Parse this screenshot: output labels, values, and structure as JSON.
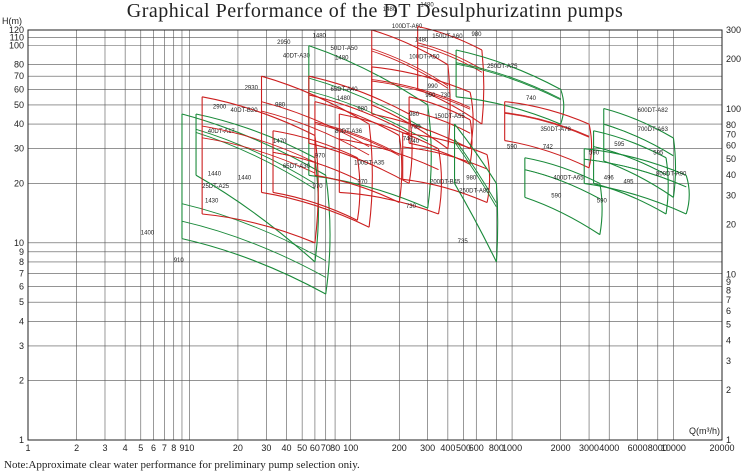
{
  "title": "Graphical Performance of the DT Desulphurizatinn pumps",
  "note": "Note:Approximate clear water performance for preliminary pump  selection oniy.",
  "chart_data": {
    "type": "pump-performance-envelope",
    "xlabel": "Q(m³/h)",
    "ylabel": "H(m)",
    "xscale": "log",
    "yscale": "log",
    "xlim": [
      1,
      20000
    ],
    "ylim": [
      1,
      120
    ],
    "grid": true,
    "x_ticks": [
      1,
      2,
      3,
      4,
      5,
      6,
      7,
      8,
      9,
      10,
      20,
      30,
      40,
      50,
      60,
      70,
      80,
      100,
      200,
      300,
      400,
      500,
      600,
      800,
      1000,
      2000,
      3000,
      4000,
      6000,
      8000,
      10000,
      20000
    ],
    "x_tick_labels": [
      "1",
      "2",
      "3",
      "4",
      "5",
      "6",
      "7",
      "8",
      "9",
      "10",
      "20",
      "30",
      "40",
      "50",
      "60",
      "70",
      "80",
      "100",
      "200",
      "300",
      "400",
      "500",
      "600",
      "800",
      "1000",
      "2000",
      "3000",
      "4000",
      "6000",
      "8000",
      "10000",
      "20000"
    ],
    "y_ticks": [
      1,
      2,
      3,
      4,
      5,
      6,
      7,
      8,
      9,
      10,
      20,
      30,
      40,
      50,
      60,
      70,
      80,
      100,
      110,
      120
    ],
    "y_tick_labels": [
      "1",
      "2",
      "3",
      "4",
      "5",
      "6",
      "7",
      "8",
      "9",
      "10",
      "20",
      "30",
      "40",
      "50",
      "60",
      "70",
      "80",
      "100",
      "110",
      "120"
    ],
    "y2_ticks": [
      1,
      2,
      3,
      4,
      5,
      6,
      7,
      8,
      9,
      10,
      20,
      30,
      40,
      50,
      60,
      70,
      80,
      100,
      200,
      300
    ],
    "y2_tick_labels": [
      "1",
      "2",
      "3",
      "4",
      "5",
      "6",
      "7",
      "8",
      "9",
      "10",
      "20",
      "30",
      "40",
      "50",
      "60",
      "70",
      "80",
      "100",
      "200",
      "300"
    ],
    "colors": {
      "green": "#1a8a3a",
      "red": "#cc1f1f",
      "grid": "#555555"
    },
    "pumps": [
      {
        "name": "25DT-A25",
        "color": "green",
        "x": [
          9,
          70
        ],
        "h_top": [
          45,
          22
        ],
        "h_bot": [
          10.5,
          5.5
        ],
        "tl": [
          0.72,
          0.86
        ],
        "label": [
          12,
          19
        ],
        "speeds": [
          {
            "t": "2900",
            "at": [
              14,
              48
            ]
          },
          {
            "t": "1440",
            "at": [
              13,
              22
            ]
          },
          {
            "t": "1430",
            "at": [
              12.5,
              16
            ]
          },
          {
            "t": "1400",
            "at": [
              5,
              11
            ]
          },
          {
            "t": "910",
            "at": [
              8,
              8
            ]
          }
        ]
      },
      {
        "name": "40DT-A17",
        "color": "green",
        "x": [
          11,
          60
        ],
        "h_top": [
          45,
          27
        ],
        "h_bot": [
          22,
          8
        ],
        "tl": [
          0.25,
          0.3
        ],
        "label": [
          13,
          36
        ],
        "speeds": []
      },
      {
        "name": "40DT-B20",
        "color": "red",
        "x": [
          12,
          60
        ],
        "h_top": [
          55,
          35
        ],
        "h_bot": [
          14,
          10
        ],
        "tl": [
          0.25,
          0.35
        ],
        "label": [
          18,
          46
        ],
        "speeds": [
          {
            "t": "2930",
            "at": [
              22,
              60
            ]
          },
          {
            "t": "1440",
            "at": [
              20,
              21
            ]
          }
        ]
      },
      {
        "name": "40DT-A30",
        "color": "red",
        "x": [
          28,
          130
        ],
        "h_top": [
          70,
          40
        ],
        "h_bot": [
          18,
          12
        ],
        "tl": [
          0.22,
          0.3
        ],
        "label": [
          38,
          87
        ],
        "speeds": [
          {
            "t": "2950",
            "at": [
              35,
              102
            ]
          },
          {
            "t": "980",
            "at": [
              34,
              49
            ]
          },
          {
            "t": "1470",
            "at": [
              33,
              32
            ]
          }
        ]
      },
      {
        "name": "50DT-A50",
        "color": "green",
        "x": [
          55,
          300
        ],
        "h_top": [
          100,
          50
        ],
        "h_bot": [
          22,
          15
        ],
        "tl": [
          0.25,
          0.35
        ],
        "label": [
          75,
          95
        ],
        "speeds": [
          {
            "t": "1480",
            "at": [
              58,
              110
            ]
          }
        ]
      },
      {
        "name": "65DT-A30",
        "color": "red",
        "x": [
          33,
          110
        ],
        "h_top": [
          37,
          27
        ],
        "h_bot": [
          18,
          13
        ],
        "tl": [
          0.35,
          0.35
        ],
        "label": [
          38,
          24
        ],
        "speeds": [
          {
            "t": "970",
            "at": [
              60,
              27
            ]
          },
          {
            "t": "970",
            "at": [
              58,
              19
            ]
          }
        ]
      },
      {
        "name": "65DT-A40",
        "color": "red",
        "x": [
          55,
          230
        ],
        "h_top": [
          70,
          45
        ],
        "h_bot": [
          32,
          20
        ],
        "tl": [
          0.28,
          0.28
        ],
        "label": [
          75,
          59
        ],
        "speeds": [
          {
            "t": "1480",
            "at": [
              80,
              85
            ]
          },
          {
            "t": "1480",
            "at": [
              82,
              53
            ]
          }
        ]
      },
      {
        "name": "80DT-A36",
        "color": "red",
        "x": [
          60,
          200
        ],
        "h_top": [
          52,
          35
        ],
        "h_bot": [
          22,
          16
        ],
        "tl": [
          0.28,
          0.3
        ],
        "label": [
          80,
          36
        ],
        "speeds": [
          {
            "t": "980",
            "at": [
              110,
              47
            ]
          }
        ]
      },
      {
        "name": "100DT-A35",
        "color": "red",
        "x": [
          85,
          350
        ],
        "h_top": [
          45,
          30
        ],
        "h_bot": [
          18,
          14
        ],
        "tl": [
          0.32,
          0.32
        ],
        "label": [
          105,
          25
        ],
        "speeds": [
          {
            "t": "970",
            "at": [
              110,
              20
            ]
          },
          {
            "t": "740",
            "at": [
              230,
              32
            ]
          }
        ]
      },
      {
        "name": "100DT-A60",
        "color": "red",
        "x": [
          135,
          400
        ],
        "h_top": [
          120,
          80
        ],
        "h_bot": [
          50,
          30
        ],
        "tl": [
          0.25,
          0.28
        ],
        "label": [
          180,
          123
        ],
        "speeds": [
          {
            "t": "1480",
            "at": [
              158,
              150
            ]
          }
        ]
      },
      {
        "name": "100DT-A50",
        "color": "red",
        "x": [
          135,
          550
        ],
        "h_top": [
          78,
          58
        ],
        "h_bot": [
          45,
          30
        ],
        "tl": [
          0.27,
          0.3
        ],
        "label": [
          230,
          86
        ],
        "speeds": [
          {
            "t": "1480",
            "at": [
              250,
              105
            ]
          },
          {
            "t": "730",
            "at": [
              235,
              38
            ]
          }
        ]
      },
      {
        "name": "150DT-A60",
        "color": "red",
        "x": [
          260,
          650
        ],
        "h_top": [
          125,
          95
        ],
        "h_bot": [
          60,
          40
        ],
        "tl": [
          0.26,
          0.3
        ],
        "label": [
          320,
          109
        ],
        "speeds": [
          {
            "t": "1480",
            "at": [
              270,
              158
            ]
          },
          {
            "t": "990",
            "at": [
              300,
              61
            ]
          }
        ]
      },
      {
        "name": "150DT-A55",
        "color": "red",
        "x": [
          230,
          550
        ],
        "h_top": [
          55,
          42
        ],
        "h_bot": [
          32,
          25
        ],
        "tl": [
          0.3,
          0.3
        ],
        "label": [
          330,
          43
        ],
        "speeds": [
          {
            "t": "990",
            "at": [
              290,
              55
            ]
          },
          {
            "t": "980",
            "at": [
              230,
              44
            ]
          }
        ]
      },
      {
        "name": "200DT-B45",
        "color": "red",
        "x": [
          210,
          700
        ],
        "h_top": [
          36,
          28
        ],
        "h_bot": [
          21,
          16
        ],
        "tl": [
          0.3,
          0.3
        ],
        "label": [
          310,
          20
        ],
        "speeds": [
          {
            "t": "740",
            "at": [
              210,
              33
            ]
          },
          {
            "t": "730",
            "at": [
              220,
              15
            ]
          }
        ]
      },
      {
        "name": "250DT-A85",
        "color": "green",
        "x": [
          440,
          800
        ],
        "h_top": [
          40,
          20
        ],
        "h_bot": [
          20,
          8
        ],
        "tl": [
          0.25,
          0.3
        ],
        "label": [
          470,
          18
        ],
        "speeds": [
          {
            "t": "980",
            "at": [
              520,
              21
            ]
          },
          {
            "t": "735",
            "at": [
              460,
              10
            ]
          }
        ]
      },
      {
        "name": "250DT-A75",
        "color": "green",
        "x": [
          450,
          2000
        ],
        "h_top": [
          95,
          60
        ],
        "h_bot": [
          55,
          40
        ],
        "tl": [
          0.27,
          0.3
        ],
        "label": [
          700,
          77
        ],
        "speeds": [
          {
            "t": "980",
            "at": [
              560,
              112
            ]
          },
          {
            "t": "730",
            "at": [
              360,
              55
            ]
          }
        ]
      },
      {
        "name": "350DT-A78",
        "color": "red",
        "x": [
          900,
          3000
        ],
        "h_top": [
          52,
          40
        ],
        "h_bot": [
          33,
          24
        ],
        "tl": [
          0.28,
          0.3
        ],
        "label": [
          1500,
          37
        ],
        "speeds": [
          {
            "t": "740",
            "at": [
              1220,
              53
            ]
          },
          {
            "t": "590",
            "at": [
              930,
              30
            ]
          },
          {
            "t": "742",
            "at": [
              1550,
              30
            ]
          }
        ]
      },
      {
        "name": "400DT-A65",
        "color": "green",
        "x": [
          1200,
          3500
        ],
        "h_top": [
          27,
          20
        ],
        "h_bot": [
          17,
          11
        ],
        "tl": [
          0.3,
          0.3
        ],
        "label": [
          1800,
          21
        ],
        "speeds": [
          {
            "t": "590",
            "at": [
              1750,
              17
            ]
          },
          {
            "t": "590",
            "at": [
              3350,
              16
            ]
          }
        ]
      },
      {
        "name": "600DT-A82",
        "color": "green",
        "x": [
          3700,
          10000
        ],
        "h_top": [
          48,
          34
        ],
        "h_bot": [
          26,
          17
        ],
        "tl": [
          0.3,
          0.3
        ],
        "label": [
          6000,
          46
        ],
        "speeds": [
          {
            "t": "595",
            "at": [
              4300,
              31
            ]
          }
        ]
      },
      {
        "name": "700DT-A63",
        "color": "green",
        "x": [
          3200,
          9000
        ],
        "h_top": [
          37,
          27
        ],
        "h_bot": [
          20,
          14
        ],
        "tl": [
          0.3,
          0.3
        ],
        "label": [
          6000,
          37
        ],
        "speeds": [
          {
            "t": "496",
            "at": [
              3700,
              21
            ]
          },
          {
            "t": "495",
            "at": [
              4900,
              20
            ]
          }
        ]
      },
      {
        "name": "800DT-A90",
        "color": "green",
        "x": [
          2800,
          12000
        ],
        "h_top": [
          30,
          22
        ],
        "h_bot": [
          20,
          14
        ],
        "tl": [
          0.3,
          0.3
        ],
        "label": [
          7800,
          22
        ],
        "speeds": [
          {
            "t": "590",
            "at": [
              3000,
              28
            ]
          },
          {
            "t": "595",
            "at": [
              7500,
              28
            ]
          }
        ]
      }
    ]
  }
}
